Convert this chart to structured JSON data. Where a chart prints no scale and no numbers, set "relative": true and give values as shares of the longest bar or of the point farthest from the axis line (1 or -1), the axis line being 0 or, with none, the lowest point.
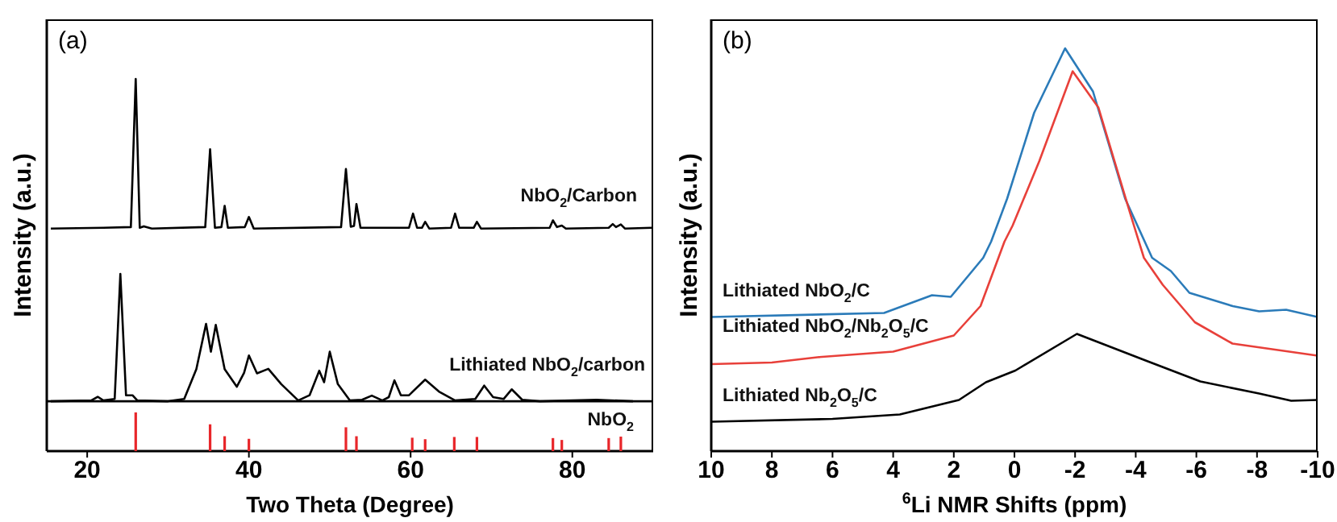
{
  "chart_data": [
    {
      "type": "line",
      "title": "(a)",
      "xlabel": "Two Theta (Degree)",
      "ylabel": "Intensity (a.u.)",
      "relative": true,
      "xlim": [
        15,
        90
      ],
      "xticks": [
        20,
        40,
        60,
        80
      ],
      "tick_labels": "x",
      "ref_lines": [
        {
          "axis": "y",
          "value": 0.134,
          "color": "#000000"
        }
      ],
      "series": [
        {
          "name": "NbO$_{2}$/Carbon",
          "color": "#000000",
          "x": [
            15.5,
            22,
            25.4,
            26.0,
            26.5,
            27,
            28,
            34.6,
            35.2,
            35.8,
            36.6,
            37.0,
            37.4,
            39.5,
            40.0,
            40.6,
            51.4,
            52.0,
            52.6,
            53.0,
            53.3,
            53.8,
            59.8,
            60.3,
            60.8,
            61.4,
            61.8,
            62.3,
            65.0,
            65.5,
            66.0,
            67.8,
            68.2,
            68.7,
            77.2,
            77.6,
            78.1,
            78.7,
            79.2,
            84.5,
            85.0,
            85.4,
            86.0,
            86.5,
            89.8
          ],
          "values": [
            0.598,
            0.6,
            0.602,
            1.0,
            0.6,
            0.604,
            0.598,
            0.602,
            0.811,
            0.6,
            0.602,
            0.659,
            0.6,
            0.602,
            0.629,
            0.598,
            0.602,
            0.758,
            0.603,
            0.605,
            0.664,
            0.6,
            0.6,
            0.638,
            0.6,
            0.6,
            0.616,
            0.598,
            0.6,
            0.638,
            0.6,
            0.6,
            0.616,
            0.598,
            0.6,
            0.62,
            0.602,
            0.606,
            0.598,
            0.6,
            0.61,
            0.602,
            0.609,
            0.598,
            0.6
          ]
        },
        {
          "name": "Lithiated NbO$_{2}$/carbon",
          "color": "#000000",
          "x": [
            15.5,
            20.5,
            21.3,
            22,
            23.4,
            24.1,
            24.8,
            25.6,
            26.2,
            30,
            32,
            33.5,
            34.7,
            35.3,
            35.9,
            37,
            38.5,
            39.4,
            40.0,
            41.0,
            42.4,
            44,
            46.1,
            47.5,
            48.7,
            49.3,
            50.0,
            51,
            52.5,
            54,
            55.2,
            56.5,
            57.3,
            58.0,
            58.8,
            59.8,
            61.8,
            63.5,
            65.5,
            68,
            69.1,
            70.2,
            71.5,
            72.5,
            73.8,
            76,
            83,
            87.5
          ],
          "values": [
            0.134,
            0.136,
            0.146,
            0.136,
            0.14,
            0.476,
            0.15,
            0.15,
            0.136,
            0.134,
            0.14,
            0.22,
            0.342,
            0.267,
            0.339,
            0.22,
            0.173,
            0.21,
            0.257,
            0.209,
            0.221,
            0.18,
            0.136,
            0.15,
            0.216,
            0.185,
            0.267,
            0.18,
            0.136,
            0.138,
            0.149,
            0.136,
            0.145,
            0.19,
            0.15,
            0.15,
            0.192,
            0.16,
            0.136,
            0.14,
            0.176,
            0.145,
            0.14,
            0.166,
            0.138,
            0.134,
            0.138,
            0.134
          ]
        },
        {
          "name": "NbO$_{2}$",
          "type": "bar",
          "color": "#e8262a",
          "x": [
            26.0,
            35.2,
            37.0,
            40.0,
            52.0,
            53.3,
            60.2,
            61.8,
            65.4,
            68.2,
            77.6,
            78.7,
            84.5,
            86.0
          ],
          "values": [
            0.104,
            0.072,
            0.04,
            0.033,
            0.064,
            0.04,
            0.036,
            0.032,
            0.038,
            0.038,
            0.035,
            0.03,
            0.035,
            0.039
          ]
        }
      ]
    },
    {
      "type": "line",
      "title": "(b)",
      "xlabel": "$^{6}$Li NMR Shifts (ppm)",
      "ylabel": "Intensity (a.u.)",
      "relative": true,
      "xlim": [
        10,
        -10
      ],
      "xticks": [
        10,
        8,
        6,
        4,
        2,
        0,
        -2,
        -4,
        -6,
        -8,
        -10
      ],
      "tick_labels": "x",
      "series": [
        {
          "name": "Lithiated NbO$_{2}$/C",
          "color": "#2b7bb9",
          "x": [
            10,
            4.3,
            2.72,
            2.1,
            1.47,
            1.03,
            0.77,
            0.24,
            -0.65,
            -1.67,
            -2.59,
            -3.65,
            -4.54,
            -5.16,
            -5.77,
            -7.2,
            -8.07,
            -8.96,
            -10
          ],
          "values": [
            0.333,
            0.343,
            0.387,
            0.383,
            0.44,
            0.48,
            0.52,
            0.627,
            0.84,
            1.0,
            0.893,
            0.627,
            0.48,
            0.447,
            0.393,
            0.36,
            0.347,
            0.351,
            0.333
          ]
        },
        {
          "name": "Lithiated NbO$_{2}$/Nb$_{2}$O$_{5}$/C",
          "color": "#e8403a",
          "x": [
            10,
            8,
            6.5,
            4,
            2.0,
            1.12,
            0.33,
            0.06,
            -0.82,
            -1.92,
            -2.77,
            -3.83,
            -4.27,
            -4.89,
            -5.95,
            -7.19,
            -10
          ],
          "values": [
            0.216,
            0.22,
            0.233,
            0.247,
            0.287,
            0.36,
            0.52,
            0.56,
            0.72,
            0.943,
            0.853,
            0.587,
            0.48,
            0.413,
            0.32,
            0.267,
            0.237
          ]
        },
        {
          "name": "Lithiated Nb$_{2}$O$_{5}$/C",
          "color": "#000000",
          "x": [
            10,
            6,
            3.78,
            1.83,
            0.94,
            -0.03,
            -2.06,
            -4.36,
            -6.13,
            -8.07,
            -9.13,
            -10
          ],
          "values": [
            0.073,
            0.08,
            0.091,
            0.127,
            0.171,
            0.2,
            0.291,
            0.224,
            0.173,
            0.143,
            0.125,
            0.127
          ]
        }
      ]
    }
  ]
}
